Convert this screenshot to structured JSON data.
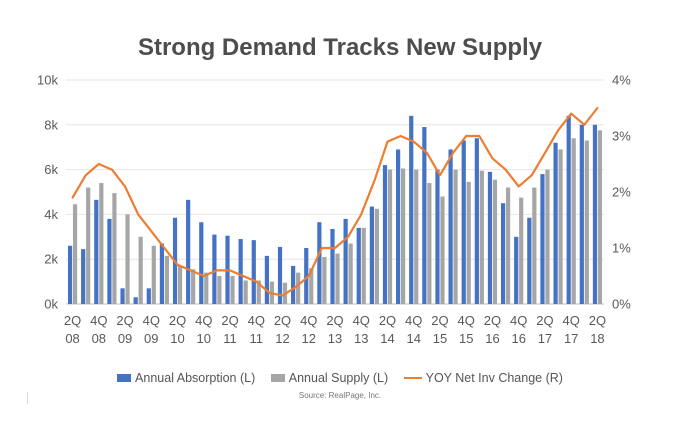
{
  "chart_data": {
    "type": "bar",
    "title": "Strong Demand Tracks New Supply",
    "source": "Source: RealPage, Inc.",
    "y_left": {
      "ticks": [
        "0k",
        "2k",
        "4k",
        "6k",
        "8k",
        "10k"
      ],
      "ylim": [
        0,
        10000
      ]
    },
    "y_right": {
      "ticks": [
        "0%",
        "1%",
        "2%",
        "3%",
        "4%"
      ],
      "ylim": [
        0,
        4
      ]
    },
    "grid": true,
    "legend_position": "bottom",
    "categories": [
      "2Q08",
      "3Q08",
      "4Q08",
      "1Q09",
      "2Q09",
      "3Q09",
      "4Q09",
      "1Q10",
      "2Q10",
      "3Q10",
      "4Q10",
      "1Q11",
      "2Q11",
      "3Q11",
      "4Q11",
      "1Q12",
      "2Q12",
      "3Q12",
      "4Q12",
      "1Q13",
      "2Q13",
      "3Q13",
      "4Q13",
      "1Q14",
      "2Q14",
      "3Q14",
      "4Q14",
      "1Q15",
      "2Q15",
      "3Q15",
      "4Q15",
      "1Q16",
      "2Q16",
      "3Q16",
      "4Q16",
      "1Q17",
      "2Q17",
      "3Q17",
      "4Q17",
      "1Q18",
      "2Q18"
    ],
    "x_tick_labels": [
      {
        "q": "2Q",
        "y": "08"
      },
      {
        "q": "4Q",
        "y": "08"
      },
      {
        "q": "2Q",
        "y": "09"
      },
      {
        "q": "4Q",
        "y": "09"
      },
      {
        "q": "2Q",
        "y": "10"
      },
      {
        "q": "4Q",
        "y": "10"
      },
      {
        "q": "2Q",
        "y": "11"
      },
      {
        "q": "4Q",
        "y": "11"
      },
      {
        "q": "2Q",
        "y": "12"
      },
      {
        "q": "4Q",
        "y": "12"
      },
      {
        "q": "2Q",
        "y": "13"
      },
      {
        "q": "4Q",
        "y": "13"
      },
      {
        "q": "2Q",
        "y": "14"
      },
      {
        "q": "4Q",
        "y": "14"
      },
      {
        "q": "2Q",
        "y": "15"
      },
      {
        "q": "4Q",
        "y": "15"
      },
      {
        "q": "2Q",
        "y": "16"
      },
      {
        "q": "4Q",
        "y": "16"
      },
      {
        "q": "2Q",
        "y": "17"
      },
      {
        "q": "4Q",
        "y": "17"
      },
      {
        "q": "2Q",
        "y": "18"
      }
    ],
    "series": [
      {
        "name": "Annual Absorption (L)",
        "type": "bar",
        "axis": "left",
        "color": "#4472c4",
        "values": [
          2600,
          2450,
          4650,
          3800,
          700,
          300,
          700,
          2700,
          3850,
          4650,
          3650,
          3100,
          3050,
          2900,
          2850,
          2150,
          2550,
          1700,
          2500,
          3650,
          3350,
          3800,
          3400,
          4350,
          6200,
          6900,
          8400,
          7900,
          6000,
          6900,
          7300,
          7400,
          5900,
          4500,
          3000,
          3850,
          5800,
          7200,
          8400,
          8000,
          8000
        ]
      },
      {
        "name": "Annual Supply (L)",
        "type": "bar",
        "axis": "left",
        "color": "#a6a6a6",
        "values": [
          4450,
          5200,
          5400,
          4950,
          4000,
          3000,
          2600,
          2150,
          1700,
          1550,
          1400,
          1250,
          1250,
          1050,
          1050,
          1000,
          950,
          1400,
          1600,
          2100,
          2250,
          2700,
          3400,
          4250,
          6000,
          6050,
          6000,
          5400,
          4800,
          6000,
          5450,
          5950,
          5550,
          5200,
          4750,
          5200,
          6000,
          6900,
          7400,
          7300,
          7750
        ]
      },
      {
        "name": "YOY Net Inv Change (R)",
        "type": "line",
        "axis": "right",
        "color": "#ed7d31",
        "values": [
          1.9,
          2.3,
          2.5,
          2.4,
          2.1,
          1.6,
          1.3,
          1.0,
          0.7,
          0.6,
          0.5,
          0.6,
          0.6,
          0.5,
          0.4,
          0.2,
          0.15,
          0.3,
          0.5,
          1.0,
          1.0,
          1.2,
          1.6,
          2.2,
          2.9,
          3.0,
          2.9,
          2.7,
          2.3,
          2.7,
          3.0,
          3.0,
          2.6,
          2.4,
          2.1,
          2.3,
          2.7,
          3.1,
          3.4,
          3.2,
          3.5
        ]
      }
    ]
  }
}
